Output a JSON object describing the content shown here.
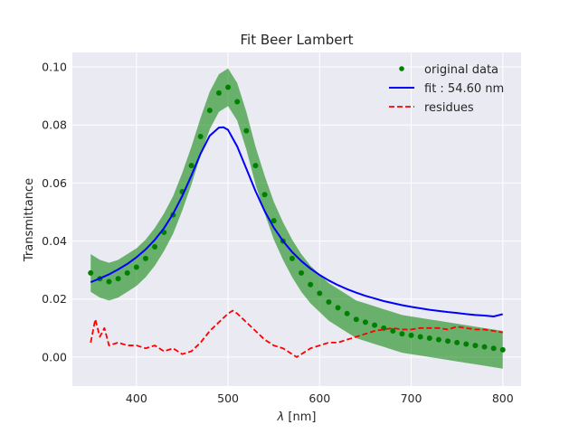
{
  "chart_data": {
    "type": "line",
    "title": "Fit Beer Lambert",
    "xlabel_symbol": "λ",
    "xlabel_unit": "[nm]",
    "ylabel": "Transmittance",
    "xlim": [
      330,
      820
    ],
    "ylim": [
      -0.01,
      0.105
    ],
    "xticks": [
      400,
      500,
      600,
      700,
      800
    ],
    "xtick_labels": [
      "400",
      "500",
      "600",
      "700",
      "800"
    ],
    "yticks": [
      0.0,
      0.02,
      0.04,
      0.06,
      0.08,
      0.1
    ],
    "ytick_labels": [
      "0.00",
      "0.02",
      "0.04",
      "0.06",
      "0.08",
      "0.10"
    ],
    "grid": true,
    "legend_position": "top-right",
    "series": [
      {
        "name": "original data",
        "style": "points with error band",
        "color": "#008000",
        "x": [
          350,
          360,
          370,
          380,
          390,
          400,
          410,
          420,
          430,
          440,
          450,
          460,
          470,
          480,
          490,
          500,
          510,
          520,
          530,
          540,
          550,
          560,
          570,
          580,
          590,
          600,
          610,
          620,
          630,
          640,
          650,
          660,
          670,
          680,
          690,
          700,
          710,
          720,
          730,
          740,
          750,
          760,
          770,
          780,
          790,
          800
        ],
        "y": [
          0.029,
          0.027,
          0.026,
          0.027,
          0.029,
          0.031,
          0.034,
          0.038,
          0.043,
          0.049,
          0.057,
          0.066,
          0.076,
          0.085,
          0.091,
          0.093,
          0.088,
          0.078,
          0.066,
          0.056,
          0.047,
          0.04,
          0.034,
          0.029,
          0.025,
          0.022,
          0.019,
          0.017,
          0.015,
          0.013,
          0.012,
          0.011,
          0.01,
          0.009,
          0.008,
          0.0075,
          0.007,
          0.0065,
          0.006,
          0.0055,
          0.005,
          0.0045,
          0.004,
          0.0035,
          0.003,
          0.0025
        ],
        "error": 0.0065
      },
      {
        "name": "fit : 54.60 nm",
        "style": "solid line",
        "color": "#0000ff",
        "x": [
          350,
          360,
          370,
          380,
          390,
          400,
          410,
          420,
          430,
          440,
          450,
          460,
          470,
          480,
          490,
          495,
          500,
          510,
          520,
          530,
          540,
          550,
          560,
          570,
          580,
          590,
          600,
          610,
          620,
          630,
          640,
          650,
          660,
          670,
          680,
          690,
          700,
          710,
          720,
          730,
          740,
          750,
          760,
          770,
          780,
          790,
          800
        ],
        "y": [
          0.0258,
          0.0271,
          0.0285,
          0.0302,
          0.0321,
          0.0344,
          0.0371,
          0.0404,
          0.0444,
          0.0494,
          0.0555,
          0.0626,
          0.0701,
          0.0763,
          0.0791,
          0.0792,
          0.0783,
          0.0726,
          0.0649,
          0.0572,
          0.0503,
          0.0446,
          0.04,
          0.0362,
          0.0331,
          0.0305,
          0.0283,
          0.0264,
          0.0248,
          0.0234,
          0.0222,
          0.0211,
          0.0202,
          0.0193,
          0.0186,
          0.0179,
          0.0173,
          0.0168,
          0.0163,
          0.0159,
          0.0155,
          0.0152,
          0.0148,
          0.0145,
          0.0143,
          0.014,
          0.0148
        ]
      },
      {
        "name": "residues",
        "style": "dashed line",
        "color": "#ff0000",
        "x": [
          350,
          355,
          360,
          365,
          370,
          380,
          390,
          400,
          410,
          420,
          430,
          440,
          450,
          460,
          470,
          480,
          490,
          500,
          505,
          510,
          520,
          530,
          540,
          550,
          560,
          570,
          575,
          580,
          590,
          600,
          610,
          620,
          630,
          640,
          650,
          660,
          670,
          680,
          690,
          700,
          710,
          720,
          730,
          740,
          750,
          760,
          770,
          780,
          790,
          800
        ],
        "y": [
          0.005,
          0.013,
          0.007,
          0.01,
          0.004,
          0.005,
          0.004,
          0.004,
          0.003,
          0.004,
          0.002,
          0.003,
          0.001,
          0.002,
          0.005,
          0.009,
          0.012,
          0.015,
          0.016,
          0.015,
          0.012,
          0.009,
          0.006,
          0.004,
          0.003,
          0.001,
          0.0,
          0.001,
          0.003,
          0.004,
          0.005,
          0.005,
          0.006,
          0.007,
          0.008,
          0.009,
          0.0095,
          0.01,
          0.0095,
          0.0095,
          0.01,
          0.01,
          0.01,
          0.0095,
          0.0105,
          0.01,
          0.0095,
          0.0095,
          0.009,
          0.0085
        ]
      }
    ]
  }
}
